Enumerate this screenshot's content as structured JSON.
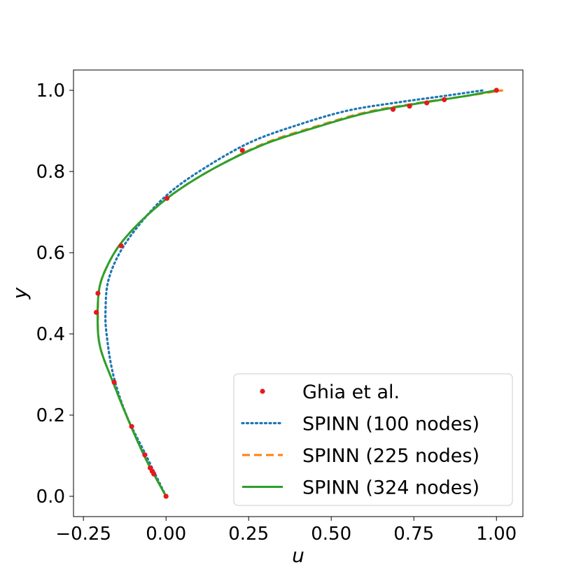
{
  "chart_data": {
    "type": "line",
    "xlabel": "u",
    "ylabel": "y",
    "xlim": [
      -0.28,
      1.08
    ],
    "ylim": [
      -0.05,
      1.05
    ],
    "xticks": [
      -0.25,
      0.0,
      0.25,
      0.5,
      0.75,
      1.0
    ],
    "xtick_labels": [
      "−0.25",
      "0.00",
      "0.25",
      "0.50",
      "0.75",
      "1.00"
    ],
    "yticks": [
      0.0,
      0.2,
      0.4,
      0.6,
      0.8,
      1.0
    ],
    "ytick_labels": [
      "0.0",
      "0.2",
      "0.4",
      "0.6",
      "0.8",
      "1.0"
    ],
    "grid": false,
    "legend_position": "lower-right",
    "colors": {
      "ghia": "#e41a1c",
      "spinn100": "#1f77b4",
      "spinn225": "#ff7f0e",
      "spinn324": "#2ca02c"
    },
    "series": [
      {
        "name": "Ghia et al.",
        "style": "markers",
        "points": [
          [
            0.0,
            0.0
          ],
          [
            -0.037,
            0.055
          ],
          [
            -0.042,
            0.062
          ],
          [
            -0.048,
            0.07
          ],
          [
            -0.064,
            0.102
          ],
          [
            -0.104,
            0.172
          ],
          [
            -0.157,
            0.281
          ],
          [
            -0.211,
            0.453
          ],
          [
            -0.206,
            0.5
          ],
          [
            -0.136,
            0.617
          ],
          [
            0.003,
            0.734
          ],
          [
            0.231,
            0.852
          ],
          [
            0.687,
            0.953
          ],
          [
            0.737,
            0.961
          ],
          [
            0.789,
            0.969
          ],
          [
            0.842,
            0.977
          ],
          [
            1.0,
            1.0
          ]
        ]
      },
      {
        "name": "SPINN (100 nodes)",
        "style": "dotted",
        "points": [
          [
            0.0,
            0.0
          ],
          [
            -0.06,
            0.1
          ],
          [
            -0.12,
            0.2
          ],
          [
            -0.16,
            0.3
          ],
          [
            -0.18,
            0.4
          ],
          [
            -0.183,
            0.46
          ],
          [
            -0.175,
            0.53
          ],
          [
            -0.14,
            0.6
          ],
          [
            -0.08,
            0.67
          ],
          [
            0.0,
            0.74
          ],
          [
            0.1,
            0.8
          ],
          [
            0.25,
            0.87
          ],
          [
            0.4,
            0.915
          ],
          [
            0.55,
            0.95
          ],
          [
            0.7,
            0.97
          ],
          [
            0.85,
            0.987
          ],
          [
            0.96,
            1.0
          ]
        ]
      },
      {
        "name": "SPINN (225 nodes)",
        "style": "dashed",
        "points": [
          [
            0.0,
            0.0
          ],
          [
            -0.06,
            0.09
          ],
          [
            -0.11,
            0.18
          ],
          [
            -0.16,
            0.28
          ],
          [
            -0.2,
            0.37
          ],
          [
            -0.206,
            0.45
          ],
          [
            -0.2,
            0.52
          ],
          [
            -0.17,
            0.58
          ],
          [
            -0.13,
            0.63
          ],
          [
            -0.06,
            0.69
          ],
          [
            0.03,
            0.75
          ],
          [
            0.15,
            0.81
          ],
          [
            0.3,
            0.87
          ],
          [
            0.45,
            0.91
          ],
          [
            0.6,
            0.945
          ],
          [
            0.75,
            0.967
          ],
          [
            0.9,
            0.985
          ],
          [
            1.02,
            1.0
          ]
        ]
      },
      {
        "name": "SPINN (324 nodes)",
        "style": "solid",
        "points": [
          [
            0.0,
            0.0
          ],
          [
            -0.06,
            0.09
          ],
          [
            -0.11,
            0.18
          ],
          [
            -0.16,
            0.28
          ],
          [
            -0.2,
            0.37
          ],
          [
            -0.207,
            0.45
          ],
          [
            -0.2,
            0.52
          ],
          [
            -0.17,
            0.58
          ],
          [
            -0.13,
            0.63
          ],
          [
            -0.06,
            0.69
          ],
          [
            0.03,
            0.75
          ],
          [
            0.15,
            0.81
          ],
          [
            0.3,
            0.868
          ],
          [
            0.45,
            0.908
          ],
          [
            0.6,
            0.943
          ],
          [
            0.75,
            0.966
          ],
          [
            0.9,
            0.985
          ],
          [
            1.0,
            1.0
          ]
        ]
      }
    ]
  }
}
